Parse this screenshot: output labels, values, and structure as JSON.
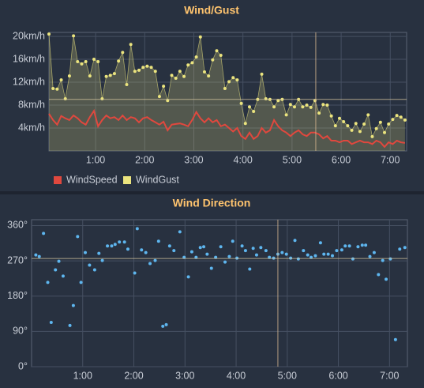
{
  "chart_data": [
    {
      "type": "line",
      "title": "Wind/Gust",
      "x": [
        3,
        8,
        13,
        18,
        23,
        28,
        33,
        38,
        43,
        48,
        53,
        58,
        63,
        68,
        73,
        78,
        83,
        88,
        93,
        98,
        103,
        108,
        113,
        118,
        123,
        128,
        133,
        138,
        143,
        148,
        153,
        158,
        163,
        168,
        173,
        178,
        183,
        188,
        193,
        198,
        203,
        208,
        213,
        218,
        223,
        228,
        233,
        238,
        243,
        248,
        253,
        258,
        263,
        268,
        273,
        278,
        283,
        288,
        293,
        298,
        303,
        308,
        313,
        318,
        323,
        328,
        333,
        338,
        343,
        348,
        353,
        358,
        363,
        368,
        373,
        378,
        383,
        388,
        393,
        398,
        403,
        408,
        413,
        418,
        423,
        428,
        433,
        438
      ],
      "series": [
        {
          "name": "WindSpeed",
          "color": "#e0483e",
          "area": false,
          "points": false,
          "values": [
            6.5,
            5.4,
            4.6,
            6.1,
            5.7,
            5.4,
            6.2,
            5.7,
            5.0,
            4.6,
            5.9,
            7.0,
            4.3,
            5.4,
            6.2,
            5.7,
            5.9,
            5.4,
            6.2,
            5.4,
            5.9,
            5.7,
            5.0,
            5.7,
            5.9,
            5.4,
            5.0,
            4.6,
            5.1,
            3.6,
            4.6,
            4.7,
            4.8,
            4.6,
            4.3,
            5.4,
            6.8,
            5.7,
            5.0,
            5.7,
            5.0,
            5.4,
            4.3,
            4.6,
            4.0,
            3.4,
            4.0,
            2.6,
            2.1,
            3.2,
            2.1,
            2.6,
            4.0,
            3.2,
            3.6,
            5.4,
            4.3,
            3.6,
            3.2,
            2.6,
            3.2,
            3.6,
            2.9,
            2.6,
            3.2,
            3.2,
            2.9,
            2.2,
            2.6,
            1.8,
            1.8,
            1.5,
            1.8,
            1.8,
            1.2,
            1.5,
            1.8,
            1.5,
            1.5,
            1.2,
            1.8,
            1.5,
            0.7,
            1.5,
            1.2,
            1.8,
            1.5,
            1.4
          ]
        },
        {
          "name": "WindGust",
          "color": "#ebe47e",
          "area": true,
          "points": true,
          "values": [
            20.4,
            10.9,
            10.8,
            12.4,
            9.1,
            13.1,
            20.1,
            15.6,
            15.2,
            15.6,
            13.1,
            16.0,
            15.6,
            9.1,
            13.0,
            13.2,
            13.5,
            15.7,
            17.2,
            11.6,
            18.6,
            13.9,
            14.1,
            14.6,
            14.8,
            14.6,
            13.9,
            9.5,
            11.3,
            8.8,
            13.2,
            12.7,
            13.9,
            13.0,
            15.0,
            15.4,
            16.4,
            19.9,
            13.8,
            13.1,
            15.9,
            17.5,
            16.7,
            10.9,
            12.1,
            12.8,
            12.4,
            8.3,
            4.8,
            7.7,
            6.9,
            9.0,
            13.4,
            9.1,
            9.0,
            7.7,
            8.8,
            9.0,
            6.3,
            8.1,
            7.7,
            9.0,
            7.7,
            8.0,
            7.6,
            8.8,
            6.6,
            8.1,
            8.0,
            6.1,
            4.4,
            5.7,
            5.1,
            4.4,
            3.6,
            4.8,
            3.4,
            4.7,
            6.3,
            2.5,
            3.9,
            5.0,
            3.2,
            4.7,
            5.5,
            6.2,
            5.9,
            5.4
          ]
        }
      ],
      "xlim": [
        3,
        440
      ],
      "xticks": [
        {
          "value": 60,
          "label": "1:00"
        },
        {
          "value": 120,
          "label": "2:00"
        },
        {
          "value": 180,
          "label": "3:00"
        },
        {
          "value": 240,
          "label": "4:00"
        },
        {
          "value": 300,
          "label": "5:00"
        },
        {
          "value": 360,
          "label": "6:00"
        },
        {
          "value": 420,
          "label": "7:00"
        }
      ],
      "ylim": [
        0,
        20.7
      ],
      "yticks": [
        {
          "value": 4,
          "label": "4km/h"
        },
        {
          "value": 8,
          "label": "8km/h"
        },
        {
          "value": 12,
          "label": "12km/h"
        },
        {
          "value": 16,
          "label": "16km/h"
        },
        {
          "value": 20,
          "label": "20km/h"
        }
      ],
      "grid": true,
      "legend": "bottom",
      "vline": 329,
      "hline": 9
    },
    {
      "type": "scatter",
      "title": "Wind Direction",
      "color": "#5eb6ef",
      "x": [
        5,
        9,
        14,
        19,
        23,
        28,
        32,
        37,
        45,
        49,
        54,
        58,
        63,
        68,
        74,
        79,
        83,
        89,
        94,
        98,
        103,
        109,
        113,
        121,
        124,
        129,
        134,
        139,
        145,
        149,
        154,
        158,
        162,
        167,
        174,
        179,
        184,
        188,
        193,
        198,
        202,
        206,
        211,
        216,
        222,
        227,
        232,
        236,
        241,
        247,
        251,
        256,
        260,
        264,
        269,
        275,
        279,
        284,
        289,
        294,
        299,
        304,
        309,
        313,
        319,
        324,
        328,
        333,
        339,
        343,
        348,
        353,
        358,
        364,
        368,
        373,
        377,
        383,
        388,
        392,
        397,
        402,
        407,
        412,
        416,
        421,
        427,
        432,
        438
      ],
      "values": [
        285,
        281,
        340,
        215,
        113,
        247,
        269,
        231,
        105,
        156,
        332,
        215,
        291,
        259,
        247,
        289,
        271,
        308,
        308,
        312,
        318,
        318,
        300,
        239,
        352,
        298,
        291,
        263,
        271,
        320,
        103,
        107,
        308,
        296,
        344,
        279,
        229,
        293,
        279,
        304,
        306,
        287,
        251,
        279,
        306,
        267,
        281,
        320,
        277,
        308,
        296,
        249,
        302,
        285,
        304,
        296,
        279,
        277,
        287,
        291,
        287,
        277,
        322,
        275,
        296,
        285,
        279,
        283,
        316,
        287,
        287,
        283,
        296,
        298,
        308,
        308,
        275,
        306,
        310,
        310,
        281,
        291,
        235,
        271,
        223,
        275,
        69,
        300,
        304
      ],
      "xlim": [
        0,
        441
      ],
      "xticks": [
        {
          "value": 60,
          "label": "1:00"
        },
        {
          "value": 120,
          "label": "2:00"
        },
        {
          "value": 180,
          "label": "3:00"
        },
        {
          "value": 240,
          "label": "4:00"
        },
        {
          "value": 300,
          "label": "5:00"
        },
        {
          "value": 360,
          "label": "6:00"
        },
        {
          "value": 420,
          "label": "7:00"
        }
      ],
      "ylim": [
        0,
        375
      ],
      "yticks": [
        {
          "value": 0,
          "label": "0°"
        },
        {
          "value": 90,
          "label": "90°"
        },
        {
          "value": 180,
          "label": "180°"
        },
        {
          "value": 270,
          "label": "270°"
        },
        {
          "value": 360,
          "label": "360°"
        }
      ],
      "grid": true,
      "vline": 289,
      "hline": 276
    }
  ]
}
